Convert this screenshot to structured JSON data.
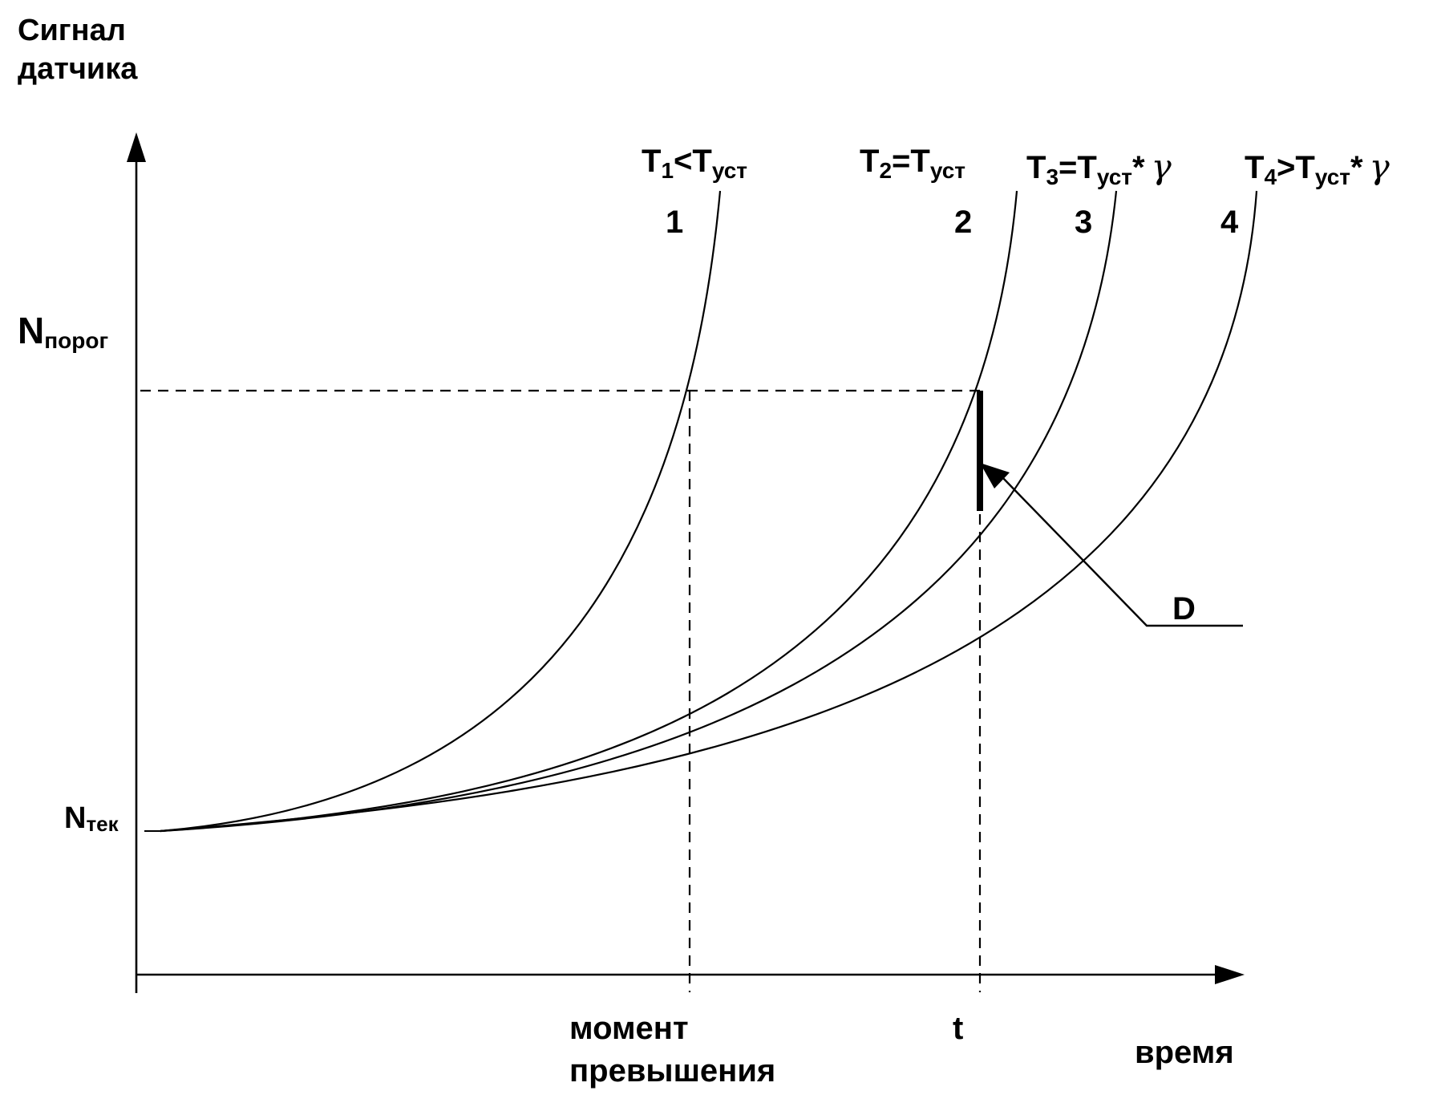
{
  "y_axis_label_line1": "Сигнал",
  "y_axis_label_line2": "датчика",
  "x_axis_label": "время",
  "threshold_label": {
    "main": "N",
    "sub": "порог"
  },
  "current_label": {
    "main": "N",
    "sub": "тек"
  },
  "exceed_label_line1": "момент",
  "exceed_label_line2": "превышения",
  "t_label": "t",
  "d_label": "D",
  "curves": [
    {
      "number": "1",
      "formula": [
        {
          "t": "T"
        },
        {
          "s": "1"
        },
        {
          "t": "<T"
        },
        {
          "s": "уст"
        }
      ],
      "gamma": ""
    },
    {
      "number": "2",
      "formula": [
        {
          "t": "T"
        },
        {
          "s": "2"
        },
        {
          "t": "=T"
        },
        {
          "s": "уст"
        }
      ],
      "gamma": ""
    },
    {
      "number": "3",
      "formula": [
        {
          "t": "T"
        },
        {
          "s": "3"
        },
        {
          "t": "=T"
        },
        {
          "s": "уст"
        },
        {
          "t": "*"
        }
      ],
      "gamma": "γ"
    },
    {
      "number": "4",
      "formula": [
        {
          "t": "T"
        },
        {
          "s": "4"
        },
        {
          "t": ">T"
        },
        {
          "s": "уст"
        },
        {
          "t": "*"
        }
      ],
      "gamma": "γ"
    }
  ],
  "colors": {
    "ink": "#000000",
    "background": "#ffffff"
  }
}
